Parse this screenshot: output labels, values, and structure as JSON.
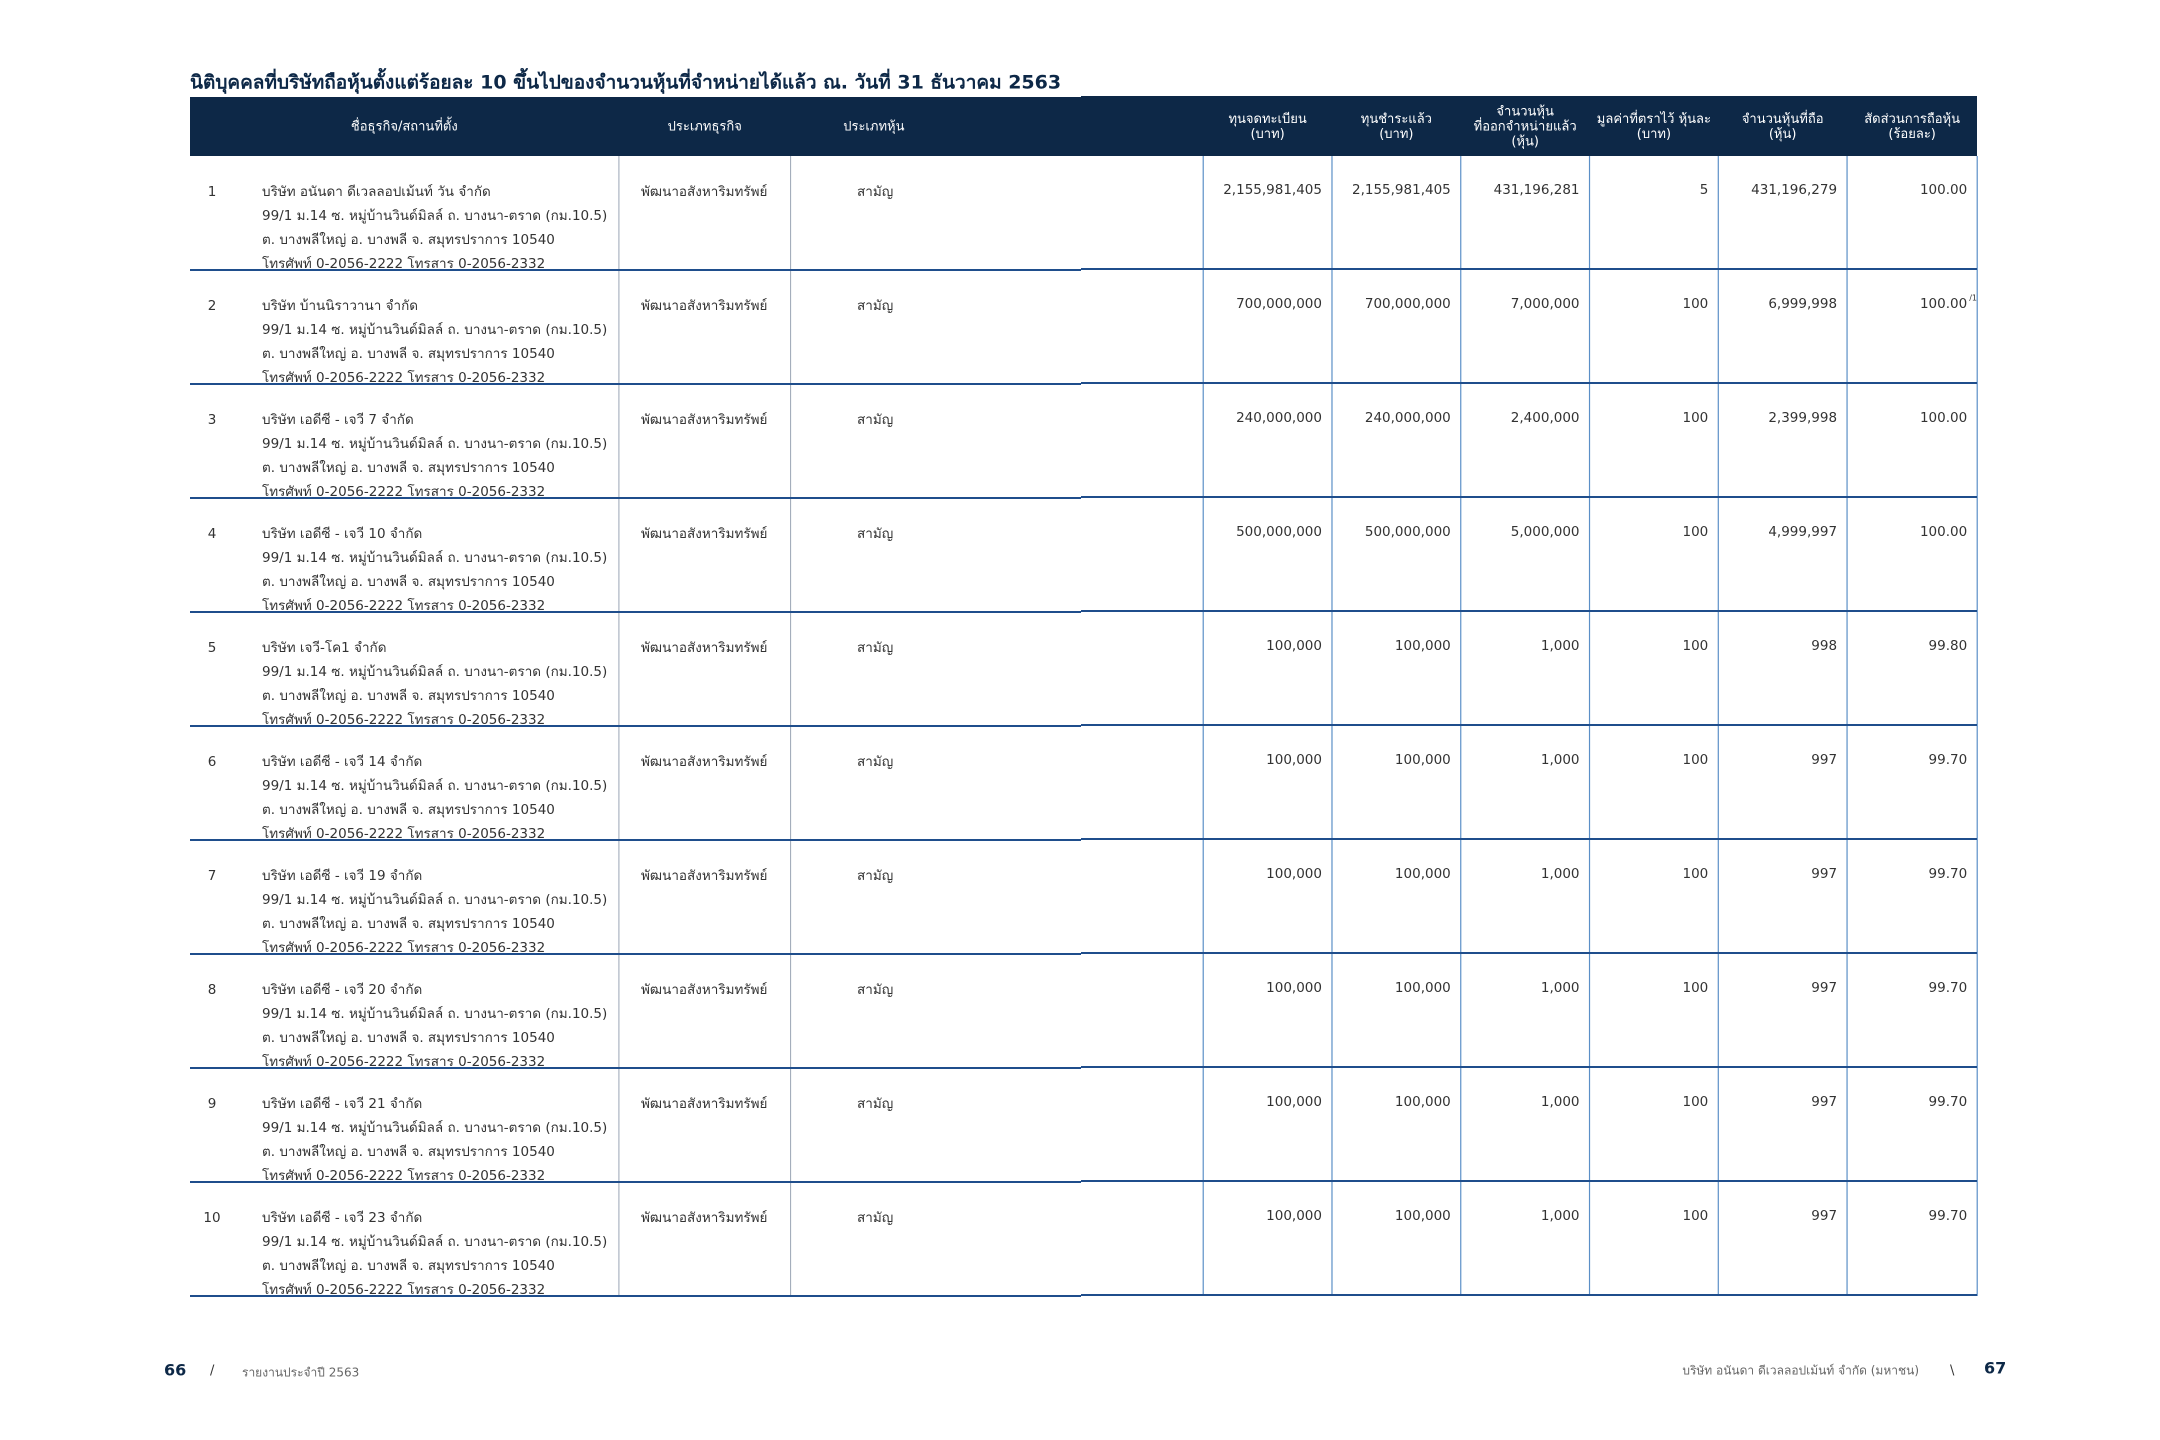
{
  "header": {
    "title": "นิติบุคคลที่บริษัทถือหุ้นตั้งแต่ร้อยละ 10 ขึ้นไปของจำนวนหุ้นที่จำหน่ายได้แล้ว ณ. วันที่ 31 ธันวาคม 2563"
  },
  "table": {
    "columns": [
      [
        "ชื่อธุรกิจ/สถานที่ตั้ง"
      ],
      [
        "ประเภทธุรกิจ"
      ],
      [
        "ประเภทหุ้น"
      ],
      [
        "ทุนจดทะเบียน",
        "(บาท)"
      ],
      [
        "ทุนชำระแล้ว",
        "(บาท)"
      ],
      [
        "จำนวนหุ้น",
        "ที่ออกจำหน่ายแล้ว",
        "(หุ้น)"
      ],
      [
        "มูลค่าที่ตราไว้ หุ้นละ",
        "(บาท)"
      ],
      [
        "จำนวนหุ้นที่ถือ",
        "(หุ้น)"
      ],
      [
        "สัดส่วนการถือหุ้น",
        "(ร้อยละ)"
      ]
    ],
    "rows": [
      {
        "no": "1",
        "name": [
          "บริษัท อนันดา ดีเวลลอปเม้นท์ วัน จำกัด",
          "99/1 ม.14 ซ. หมู่บ้านวินด์มิลล์ ถ. บางนา-ตราด (กม.10.5)",
          "ต. บางพลีใหญ่ อ. บางพลี จ. สมุทรปราการ 10540",
          "โทรศัพท์ 0-2056-2222 โทรสาร 0-2056-2332"
        ],
        "business": "พัฒนาอสังหาริมทรัพย์",
        "share_type": "สามัญ",
        "values": [
          "2,155,981,405",
          "2,155,981,405",
          "431,196,281",
          "5",
          "431,196,279",
          "100.00"
        ]
      },
      {
        "no": "2",
        "name": [
          "บริษัท บ้านนิราวานา จำกัด",
          "99/1 ม.14 ซ. หมู่บ้านวินด์มิลล์ ถ. บางนา-ตราด (กม.10.5)",
          "ต. บางพลีใหญ่ อ. บางพลี จ. สมุทรปราการ 10540",
          "โทรศัพท์ 0-2056-2222 โทรสาร 0-2056-2332"
        ],
        "business": "พัฒนาอสังหาริมทรัพย์",
        "share_type": "สามัญ",
        "values": [
          "700,000,000",
          "700,000,000",
          "7,000,000",
          "100",
          "6,999,998",
          "100.00"
        ],
        "note": "/1"
      },
      {
        "no": "3",
        "name": [
          "บริษัท เอดีซี - เจวี 7 จำกัด",
          "99/1 ม.14 ซ. หมู่บ้านวินด์มิลล์ ถ. บางนา-ตราด (กม.10.5)",
          "ต. บางพลีใหญ่ อ. บางพลี จ. สมุทรปราการ 10540",
          "โทรศัพท์ 0-2056-2222 โทรสาร 0-2056-2332"
        ],
        "business": "พัฒนาอสังหาริมทรัพย์",
        "share_type": "สามัญ",
        "values": [
          "240,000,000",
          "240,000,000",
          "2,400,000",
          "100",
          "2,399,998",
          "100.00"
        ]
      },
      {
        "no": "4",
        "name": [
          "บริษัท เอดีซี - เจวี 10 จำกัด",
          "99/1 ม.14 ซ. หมู่บ้านวินด์มิลล์ ถ. บางนา-ตราด (กม.10.5)",
          "ต. บางพลีใหญ่ อ. บางพลี จ. สมุทรปราการ 10540",
          "โทรศัพท์ 0-2056-2222 โทรสาร 0-2056-2332"
        ],
        "business": "พัฒนาอสังหาริมทรัพย์",
        "share_type": "สามัญ",
        "values": [
          "500,000,000",
          "500,000,000",
          "5,000,000",
          "100",
          "4,999,997",
          "100.00"
        ]
      },
      {
        "no": "5",
        "name": [
          "บริษัท เจวี-โค1 จำกัด",
          "99/1 ม.14 ซ. หมู่บ้านวินด์มิลล์ ถ. บางนา-ตราด (กม.10.5)",
          "ต. บางพลีใหญ่ อ. บางพลี จ. สมุทรปราการ 10540",
          "โทรศัพท์ 0-2056-2222 โทรสาร 0-2056-2332"
        ],
        "business": "พัฒนาอสังหาริมทรัพย์",
        "share_type": "สามัญ",
        "values": [
          "100,000",
          "100,000",
          "1,000",
          "100",
          "998",
          "99.80"
        ]
      },
      {
        "no": "6",
        "name": [
          "บริษัท เอดีซี - เจวี 14 จำกัด",
          "99/1 ม.14 ซ. หมู่บ้านวินด์มิลล์ ถ. บางนา-ตราด (กม.10.5)",
          "ต. บางพลีใหญ่ อ. บางพลี จ. สมุทรปราการ 10540",
          "โทรศัพท์ 0-2056-2222 โทรสาร 0-2056-2332"
        ],
        "business": "พัฒนาอสังหาริมทรัพย์",
        "share_type": "สามัญ",
        "values": [
          "100,000",
          "100,000",
          "1,000",
          "100",
          "997",
          "99.70"
        ]
      },
      {
        "no": "7",
        "name": [
          "บริษัท เอดีซี - เจวี 19 จำกัด",
          "99/1 ม.14 ซ. หมู่บ้านวินด์มิลล์ ถ. บางนา-ตราด (กม.10.5)",
          "ต. บางพลีใหญ่ อ. บางพลี จ. สมุทรปราการ 10540",
          "โทรศัพท์ 0-2056-2222 โทรสาร 0-2056-2332"
        ],
        "business": "พัฒนาอสังหาริมทรัพย์",
        "share_type": "สามัญ",
        "values": [
          "100,000",
          "100,000",
          "1,000",
          "100",
          "997",
          "99.70"
        ]
      },
      {
        "no": "8",
        "name": [
          "บริษัท เอดีซี - เจวี 20 จำกัด",
          "99/1 ม.14 ซ. หมู่บ้านวินด์มิลล์ ถ. บางนา-ตราด (กม.10.5)",
          "ต. บางพลีใหญ่ อ. บางพลี จ. สมุทรปราการ 10540",
          "โทรศัพท์ 0-2056-2222 โทรสาร 0-2056-2332"
        ],
        "business": "พัฒนาอสังหาริมทรัพย์",
        "share_type": "สามัญ",
        "values": [
          "100,000",
          "100,000",
          "1,000",
          "100",
          "997",
          "99.70"
        ]
      },
      {
        "no": "9",
        "name": [
          "บริษัท เอดีซี - เจวี 21 จำกัด",
          "99/1 ม.14 ซ. หมู่บ้านวินด์มิลล์ ถ. บางนา-ตราด (กม.10.5)",
          "ต. บางพลีใหญ่ อ. บางพลี จ. สมุทรปราการ 10540",
          "โทรศัพท์ 0-2056-2222 โทรสาร 0-2056-2332"
        ],
        "business": "พัฒนาอสังหาริมทรัพย์",
        "share_type": "สามัญ",
        "values": [
          "100,000",
          "100,000",
          "1,000",
          "100",
          "997",
          "99.70"
        ]
      },
      {
        "no": "10",
        "name": [
          "บริษัท เอดีซี - เจวี 23 จำกัด",
          "99/1 ม.14 ซ. หมู่บ้านวินด์มิลล์ ถ. บางนา-ตราด (กม.10.5)",
          "ต. บางพลีใหญ่ อ. บางพลี จ. สมุทรปราการ 10540",
          "โทรศัพท์ 0-2056-2222 โทรสาร 0-2056-2332"
        ],
        "business": "พัฒนาอสังหาริมทรัพย์",
        "share_type": "สามัญ",
        "values": [
          "100,000",
          "100,000",
          "1,000",
          "100",
          "997",
          "99.70"
        ]
      }
    ]
  },
  "footer": {
    "left_page": "66",
    "left_sep": "/",
    "left_text": "รายงานประจำปี 2563",
    "right_text": "บริษัท อนันดา ดีเวลลอปเม้นท์ จำกัด (มหาชน)",
    "right_sep": "\\",
    "right_page": "67"
  }
}
